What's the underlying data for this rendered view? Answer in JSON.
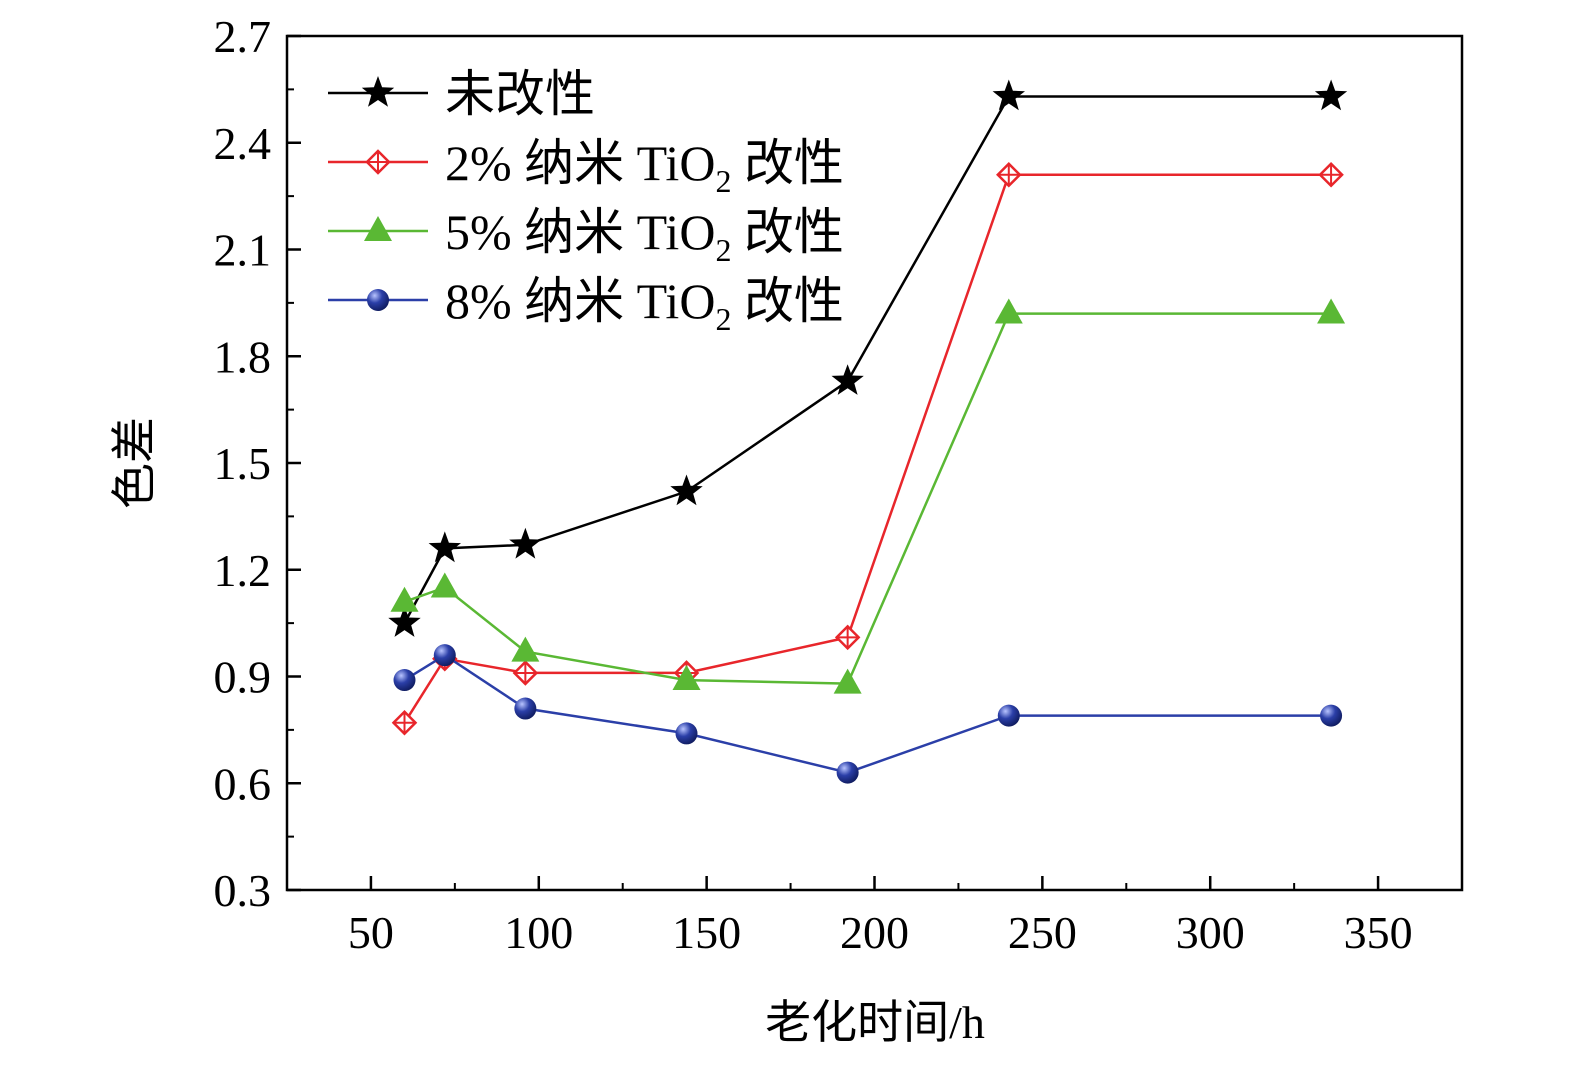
{
  "chart_data": {
    "type": "line",
    "title": "",
    "xlabel": "老化时间/h",
    "ylabel": "色差",
    "xlim": [
      25,
      375
    ],
    "ylim": [
      0.3,
      2.7
    ],
    "xticks": [
      50,
      100,
      150,
      200,
      250,
      300,
      350
    ],
    "xtick_labels": [
      "50",
      "100",
      "150",
      "200",
      "250",
      "300",
      "350"
    ],
    "yticks": [
      0.3,
      0.6,
      0.9,
      1.2,
      1.5,
      1.8,
      2.1,
      2.4,
      2.7
    ],
    "ytick_labels": [
      "0.3",
      "0.6",
      "0.9",
      "1.2",
      "1.5",
      "1.8",
      "2.1",
      "2.4",
      "2.7"
    ],
    "grid": false,
    "legend_position": "top-left",
    "x": [
      60,
      72,
      96,
      144,
      192,
      240,
      336
    ],
    "series": [
      {
        "name": "未改性",
        "label_main": "未改性",
        "label_sub": "",
        "label_tail": "",
        "color": "#000000",
        "marker": "star",
        "values": [
          1.05,
          1.26,
          1.27,
          1.42,
          1.73,
          2.53,
          2.53
        ]
      },
      {
        "name": "2% 纳米 TiO2 改性",
        "label_main": "2% 纳米 TiO",
        "label_sub": "2",
        "label_tail": " 改性",
        "color": "#e8262b",
        "marker": "diamond-open",
        "values": [
          0.77,
          0.95,
          0.91,
          0.91,
          1.01,
          2.31,
          2.31
        ]
      },
      {
        "name": "5% 纳米 TiO2 改性",
        "label_main": "5% 纳米 TiO",
        "label_sub": "2",
        "label_tail": " 改性",
        "color": "#5ab834",
        "marker": "triangle",
        "values": [
          1.11,
          1.15,
          0.97,
          0.89,
          0.88,
          1.92,
          1.92
        ]
      },
      {
        "name": "8% 纳米 TiO2 改性",
        "label_main": "8% 纳米 TiO",
        "label_sub": "2",
        "label_tail": " 改性",
        "color": "#2b3fa8",
        "marker": "sphere",
        "values": [
          0.89,
          0.96,
          0.81,
          0.74,
          0.63,
          0.79,
          0.79
        ]
      }
    ]
  }
}
